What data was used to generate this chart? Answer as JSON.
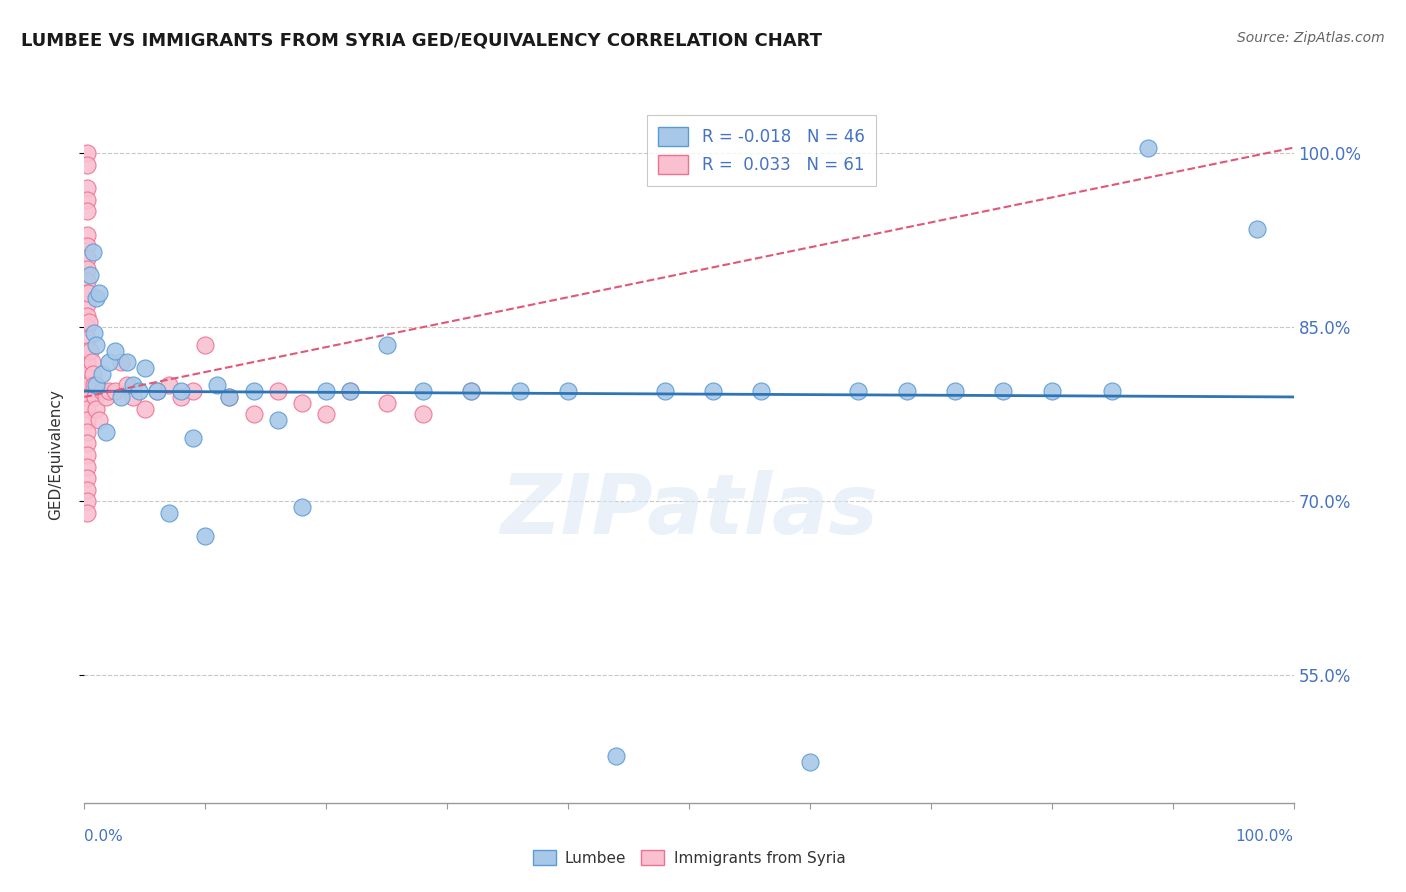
{
  "title": "LUMBEE VS IMMIGRANTS FROM SYRIA GED/EQUIVALENCY CORRELATION CHART",
  "source": "Source: ZipAtlas.com",
  "ylabel": "GED/Equivalency",
  "watermark": "ZIPatlas",
  "legend_lumbee": "Lumbee",
  "legend_syria": "Immigrants from Syria",
  "R_lumbee": -0.018,
  "N_lumbee": 46,
  "R_syria": 0.033,
  "N_syria": 61,
  "xlim": [
    0.0,
    1.0
  ],
  "ylim": [
    0.44,
    1.04
  ],
  "yticks": [
    0.55,
    0.7,
    0.85,
    1.0
  ],
  "ytick_labels": [
    "55.0%",
    "70.0%",
    "85.0%",
    "100.0%"
  ],
  "color_lumbee": "#a8c8e8",
  "color_lumbee_edge": "#5b9bd5",
  "color_lumbee_line": "#2e75b6",
  "color_syria": "#f8c0d0",
  "color_syria_edge": "#f07090",
  "color_syria_line": "#e05878",
  "color_text_blue": "#4472c4",
  "background": "#ffffff",
  "grid_color": "#c8c8c8",
  "lumbee_x": [
    0.005,
    0.007,
    0.008,
    0.01,
    0.01,
    0.01,
    0.012,
    0.015,
    0.018,
    0.02,
    0.025,
    0.03,
    0.035,
    0.04,
    0.045,
    0.05,
    0.06,
    0.07,
    0.08,
    0.09,
    0.1,
    0.11,
    0.12,
    0.14,
    0.16,
    0.18,
    0.2,
    0.22,
    0.25,
    0.28,
    0.32,
    0.36,
    0.4,
    0.44,
    0.48,
    0.52,
    0.56,
    0.6,
    0.64,
    0.68,
    0.72,
    0.76,
    0.8,
    0.85,
    0.88,
    0.97
  ],
  "lumbee_y": [
    0.895,
    0.915,
    0.845,
    0.875,
    0.835,
    0.8,
    0.88,
    0.81,
    0.76,
    0.82,
    0.83,
    0.79,
    0.82,
    0.8,
    0.795,
    0.815,
    0.795,
    0.69,
    0.795,
    0.755,
    0.67,
    0.8,
    0.79,
    0.795,
    0.77,
    0.695,
    0.795,
    0.795,
    0.835,
    0.795,
    0.795,
    0.795,
    0.795,
    0.48,
    0.795,
    0.795,
    0.795,
    0.475,
    0.795,
    0.795,
    0.795,
    0.795,
    0.795,
    0.795,
    1.005,
    0.935
  ],
  "syria_x": [
    0.002,
    0.002,
    0.002,
    0.002,
    0.002,
    0.002,
    0.002,
    0.002,
    0.002,
    0.002,
    0.002,
    0.002,
    0.002,
    0.002,
    0.002,
    0.002,
    0.002,
    0.002,
    0.002,
    0.002,
    0.002,
    0.002,
    0.002,
    0.002,
    0.002,
    0.002,
    0.002,
    0.002,
    0.002,
    0.002,
    0.003,
    0.004,
    0.005,
    0.006,
    0.007,
    0.008,
    0.009,
    0.01,
    0.012,
    0.015,
    0.018,
    0.02,
    0.025,
    0.03,
    0.035,
    0.04,
    0.05,
    0.06,
    0.07,
    0.08,
    0.09,
    0.1,
    0.12,
    0.14,
    0.16,
    0.18,
    0.2,
    0.22,
    0.25,
    0.28,
    0.32
  ],
  "syria_y": [
    1.0,
    0.99,
    0.97,
    0.96,
    0.95,
    0.93,
    0.92,
    0.91,
    0.9,
    0.89,
    0.88,
    0.87,
    0.86,
    0.85,
    0.84,
    0.83,
    0.82,
    0.81,
    0.8,
    0.79,
    0.78,
    0.77,
    0.76,
    0.75,
    0.74,
    0.73,
    0.72,
    0.71,
    0.7,
    0.69,
    0.88,
    0.855,
    0.83,
    0.82,
    0.81,
    0.8,
    0.79,
    0.78,
    0.77,
    0.795,
    0.79,
    0.795,
    0.795,
    0.82,
    0.8,
    0.79,
    0.78,
    0.795,
    0.8,
    0.79,
    0.795,
    0.835,
    0.79,
    0.775,
    0.795,
    0.785,
    0.775,
    0.795,
    0.785,
    0.775,
    0.795
  ],
  "lumbee_trend_y0": 0.795,
  "lumbee_trend_y1": 0.79,
  "syria_trend_y0": 0.79,
  "syria_trend_y1": 1.005
}
